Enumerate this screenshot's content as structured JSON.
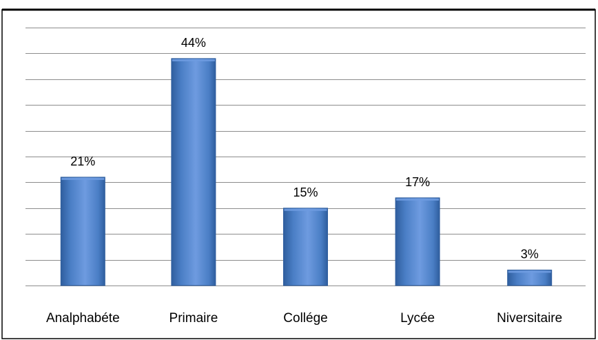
{
  "chart_data": {
    "type": "bar",
    "title": "",
    "xlabel": "",
    "ylabel": "",
    "categories": [
      "Analphabéte",
      "Primaire",
      "Collége",
      "Lycée",
      "Niversitaire"
    ],
    "values": [
      21,
      44,
      15,
      17,
      3
    ],
    "value_labels": [
      "21%",
      "44%",
      "15%",
      "17%",
      "3%"
    ],
    "unit": "%",
    "ylim": [
      0,
      50
    ],
    "grid": true,
    "legend": "none",
    "colors": {
      "bar_fill": "#4a7ec5",
      "bar_highlight": "#6e9be0",
      "bar_edge": "#2f5e9e",
      "grid": "#8c8c8c",
      "frame": "#000000"
    }
  }
}
